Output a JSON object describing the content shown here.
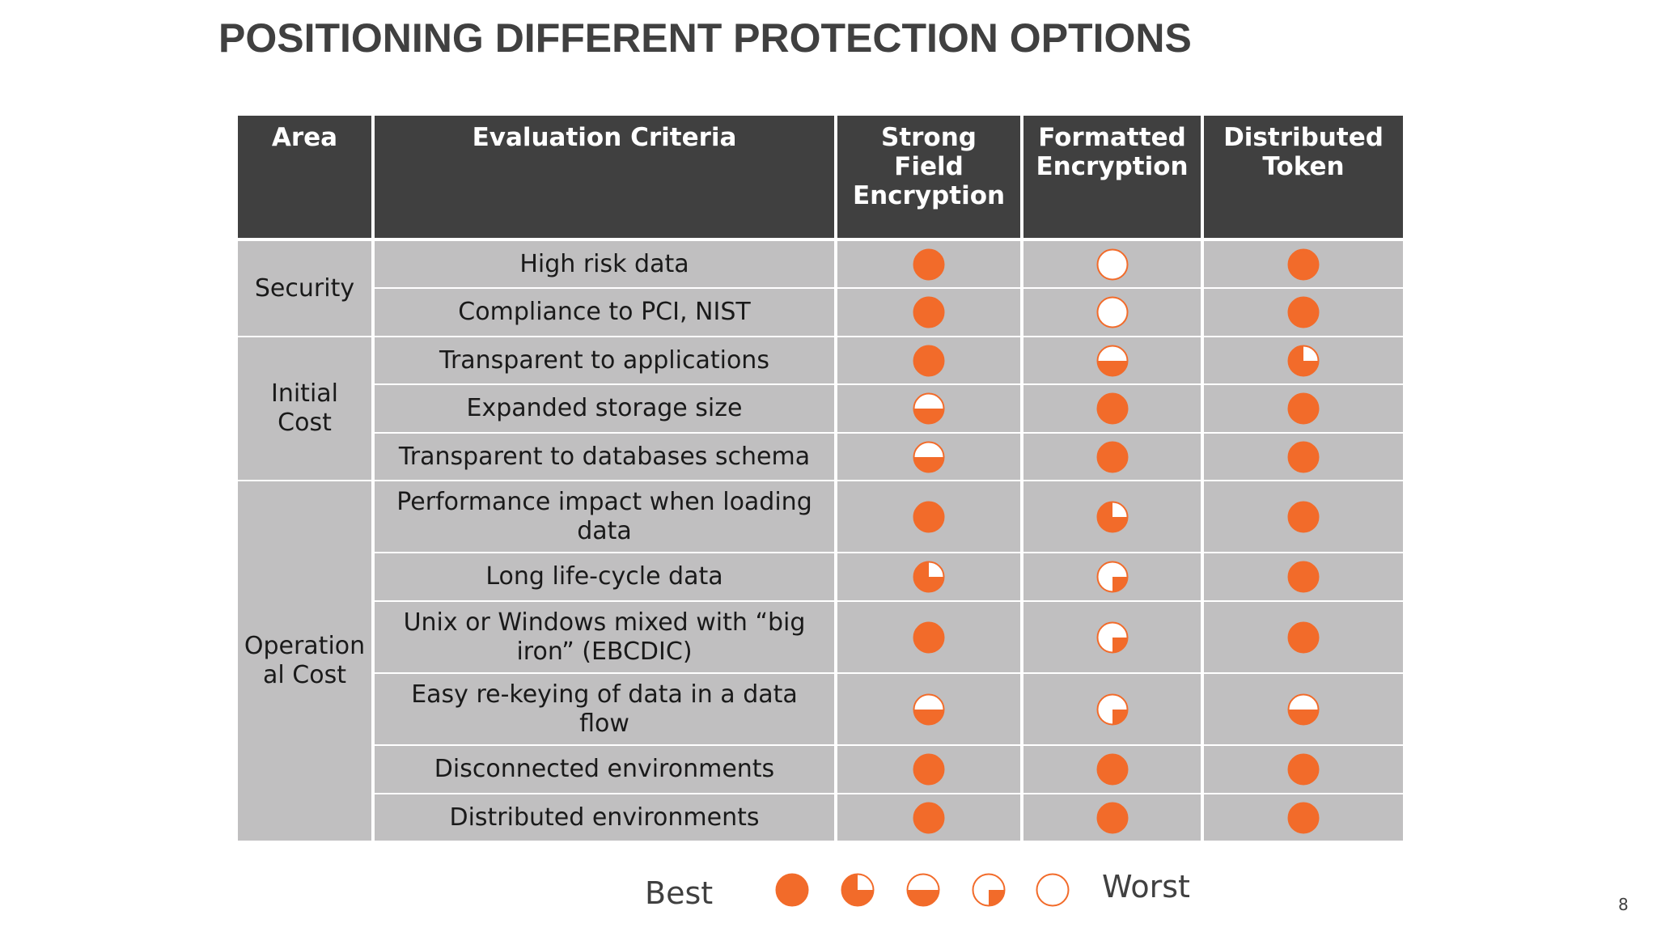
{
  "title": "POSITIONING DIFFERENT PROTECTION OPTIONS",
  "colors": {
    "header_bg": "#404040",
    "cell_bg": "#c0bfc0",
    "accent": "#f26b2a",
    "grid_line": "#ffffff"
  },
  "table": {
    "headers": [
      [
        "Area"
      ],
      [
        "Evaluation Criteria"
      ],
      [
        "Strong",
        "Field",
        "Encryption"
      ],
      [
        "Formatted",
        "Encryption"
      ],
      [
        "Distributed",
        "Token"
      ]
    ],
    "areas": [
      {
        "label": [
          "Security"
        ]
      },
      {
        "label": [
          "Initial",
          "Cost"
        ]
      },
      {
        "label": [
          "Operation",
          "al Cost"
        ]
      }
    ],
    "rows": [
      {
        "criteria": [
          "High risk data"
        ],
        "ratings": [
          "full",
          "empty",
          "full"
        ]
      },
      {
        "criteria": [
          "Compliance to PCI, NIST"
        ],
        "ratings": [
          "full",
          "empty",
          "full"
        ]
      },
      {
        "criteria": [
          "Transparent to applications"
        ],
        "ratings": [
          "full",
          "half",
          "three_quarter"
        ]
      },
      {
        "criteria": [
          "Expanded storage size"
        ],
        "ratings": [
          "half",
          "full",
          "full"
        ]
      },
      {
        "criteria": [
          "Transparent to databases schema"
        ],
        "ratings": [
          "half",
          "full",
          "full"
        ]
      },
      {
        "criteria": [
          "Performance impact when loading",
          "data"
        ],
        "ratings": [
          "full",
          "three_quarter",
          "full"
        ]
      },
      {
        "criteria": [
          "Long life-cycle data"
        ],
        "ratings": [
          "three_quarter",
          "quarter",
          "full"
        ]
      },
      {
        "criteria": [
          "Unix or Windows mixed with “big",
          "iron” (EBCDIC)"
        ],
        "ratings": [
          "full",
          "quarter",
          "full"
        ]
      },
      {
        "criteria": [
          "Easy re-keying of data in a data",
          "flow"
        ],
        "ratings": [
          "half",
          "quarter",
          "half"
        ]
      },
      {
        "criteria": [
          "Disconnected environments"
        ],
        "ratings": [
          "full",
          "full",
          "full"
        ]
      },
      {
        "criteria": [
          "Distributed environments"
        ],
        "ratings": [
          "full",
          "full",
          "full"
        ]
      }
    ]
  },
  "legend": {
    "best_label": "Best",
    "worst_label": "Worst",
    "scale": [
      "full",
      "three_quarter",
      "half",
      "quarter",
      "empty"
    ]
  },
  "page_number": "8"
}
